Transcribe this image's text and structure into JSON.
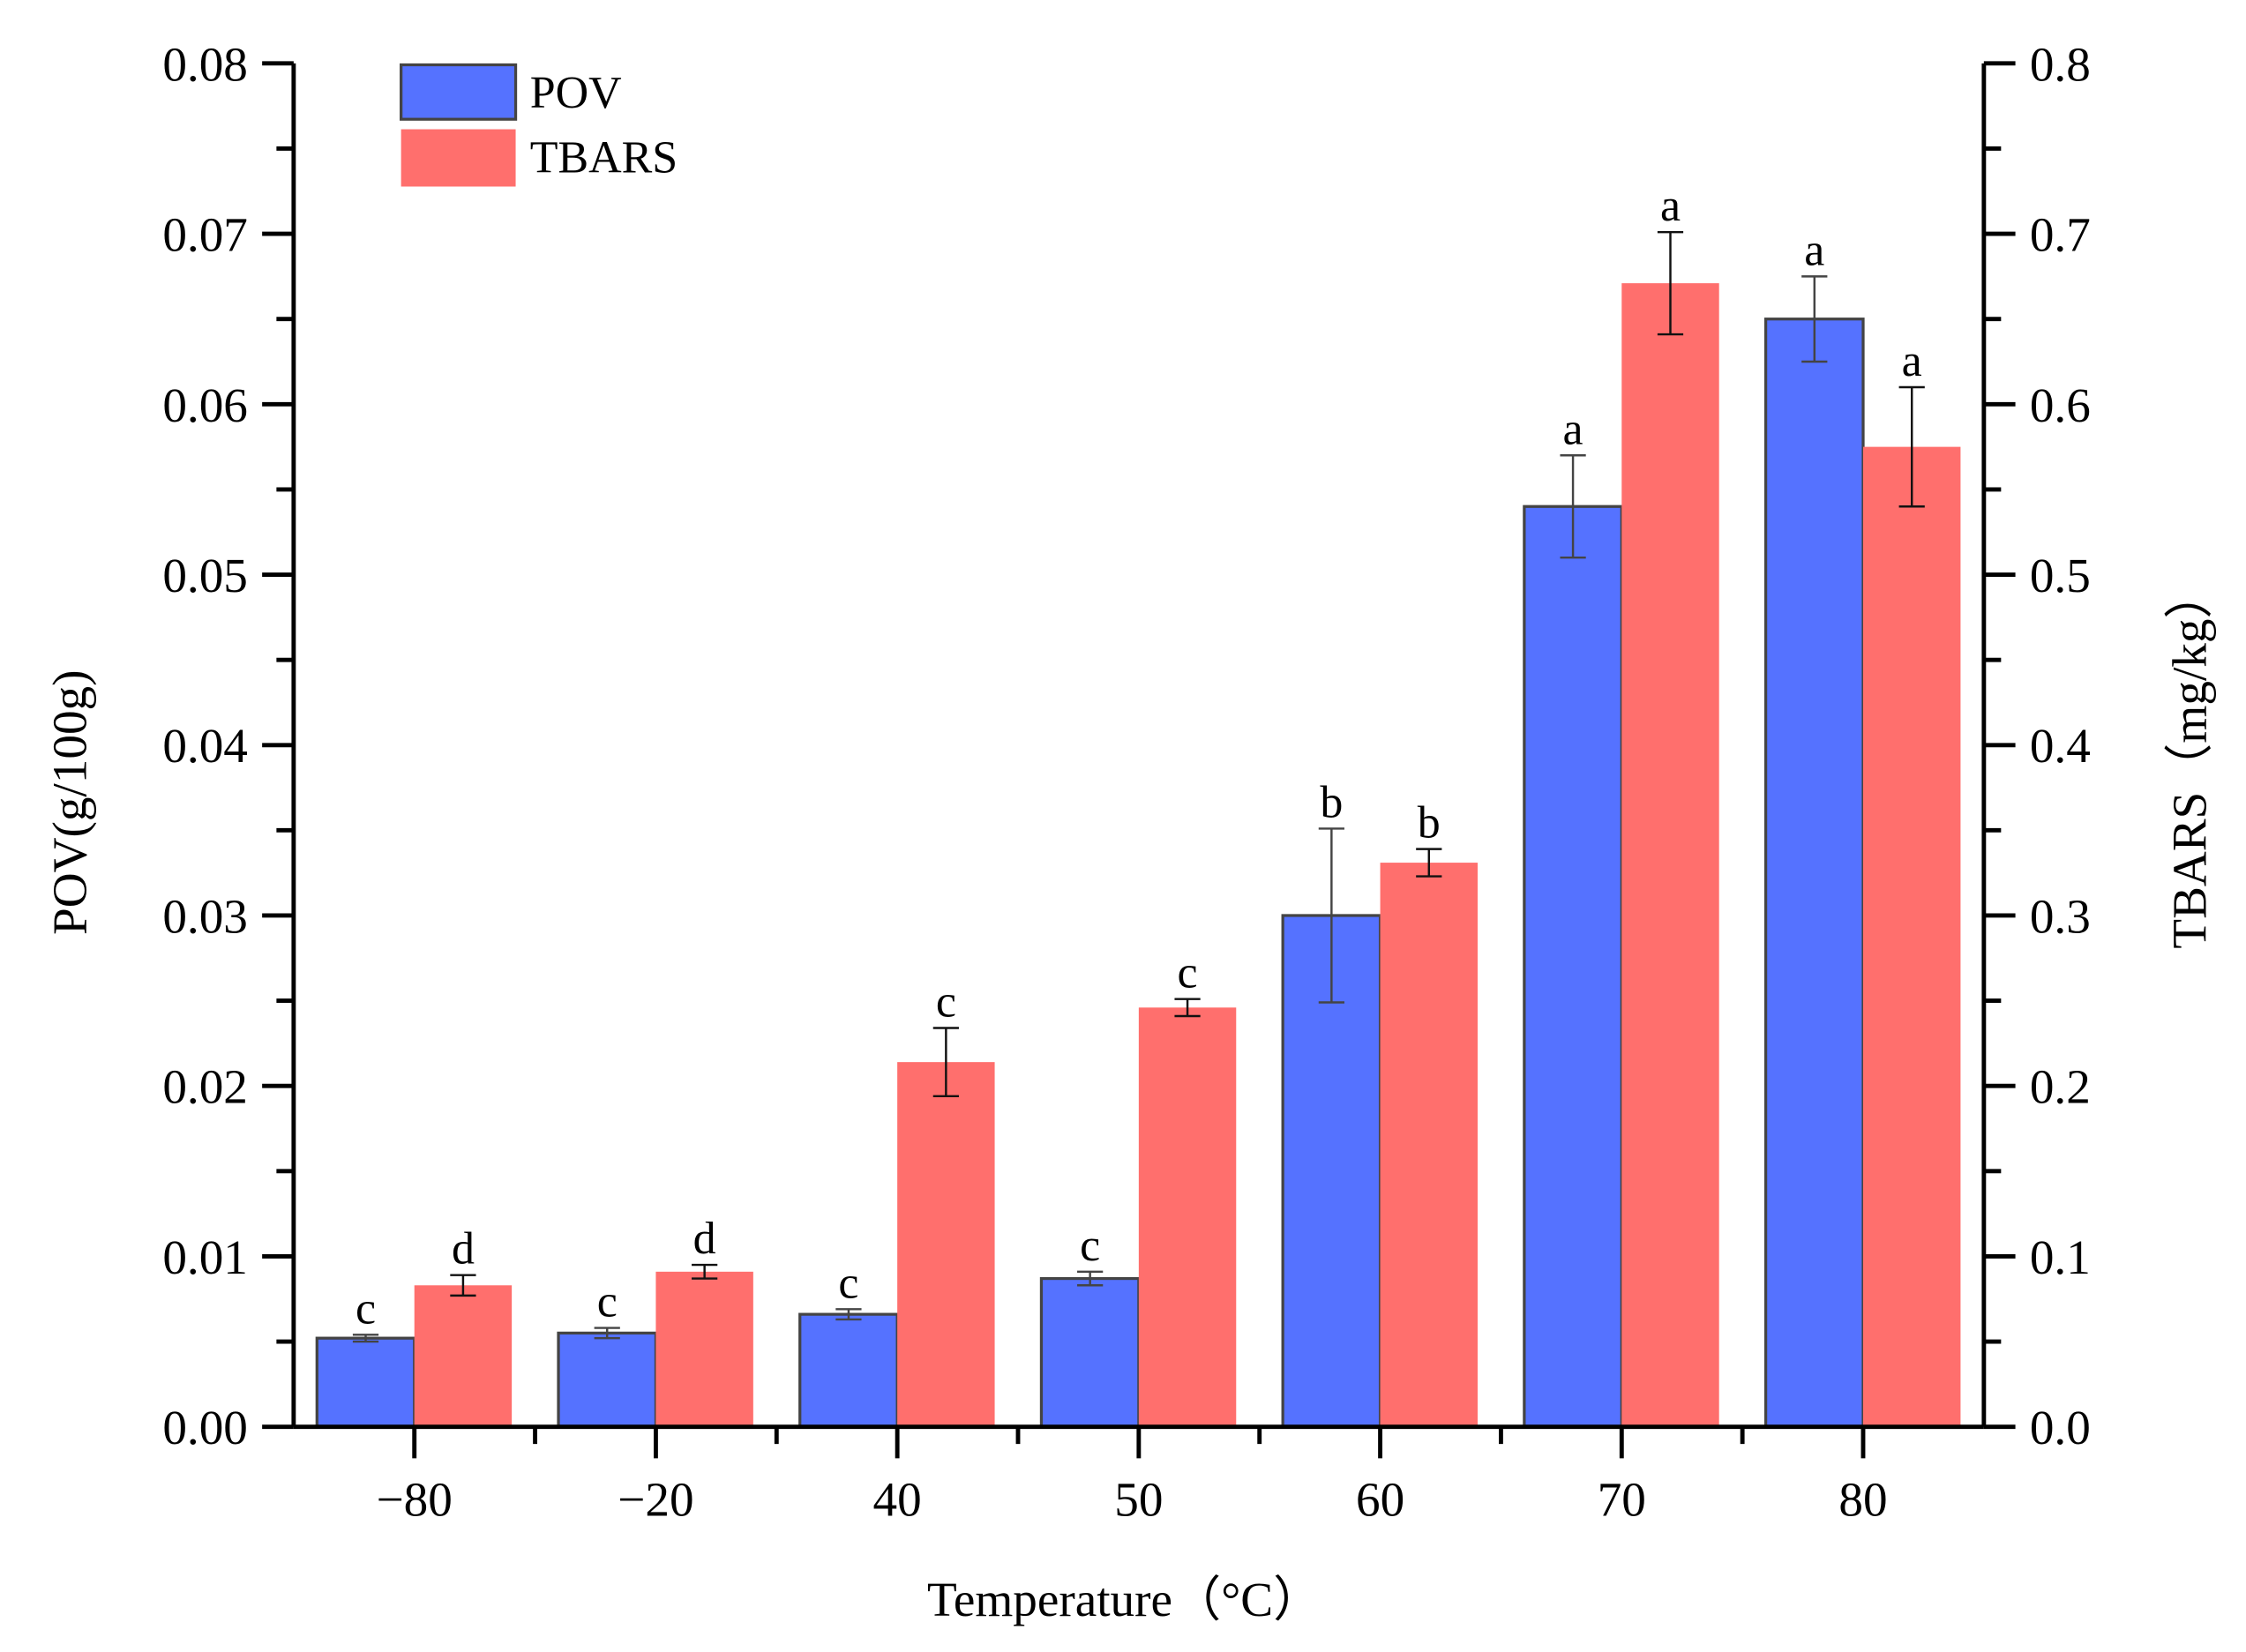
{
  "chart_data": {
    "type": "bar",
    "categories": [
      "-80",
      "-20",
      "40",
      "50",
      "60",
      "70",
      "80"
    ],
    "xlabel": "Temperature（°C）",
    "ylabel": "POV(g/100g)",
    "y2label": "TBARS（mg/kg）",
    "ylim": [
      0,
      0.08
    ],
    "y2lim": [
      0,
      0.8
    ],
    "yticks": [
      "0.00",
      "0.01",
      "0.02",
      "0.03",
      "0.04",
      "0.05",
      "0.06",
      "0.07",
      "0.08"
    ],
    "y2ticks": [
      "0.0",
      "0.1",
      "0.2",
      "0.3",
      "0.4",
      "0.5",
      "0.6",
      "0.7",
      "0.8"
    ],
    "legend_position": "top-left",
    "series": [
      {
        "name": "POV",
        "axis": "left",
        "color": "#5572FF",
        "values": [
          0.0052,
          0.0055,
          0.0066,
          0.0087,
          0.03,
          0.054,
          0.065
        ],
        "errors": [
          0.0002,
          0.0003,
          0.0003,
          0.0004,
          0.0051,
          0.003,
          0.0025
        ],
        "letters": [
          "c",
          "c",
          "c",
          "c",
          "b",
          "a",
          "a"
        ]
      },
      {
        "name": "TBARS",
        "axis": "right",
        "color": "#FF6F6D",
        "values": [
          0.083,
          0.091,
          0.214,
          0.246,
          0.331,
          0.671,
          0.575
        ],
        "errors": [
          0.006,
          0.004,
          0.02,
          0.005,
          0.008,
          0.03,
          0.035
        ],
        "letters": [
          "d",
          "d",
          "c",
          "c",
          "b",
          "a",
          "a"
        ]
      }
    ]
  }
}
